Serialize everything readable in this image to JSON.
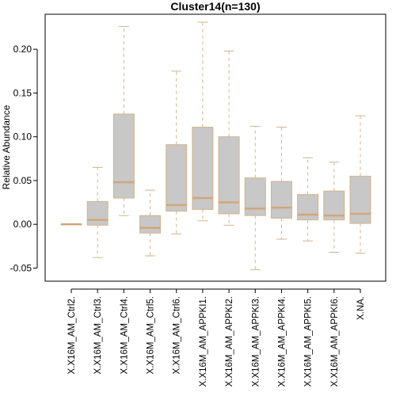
{
  "chart_data": {
    "type": "box",
    "title": "Cluster14(n=130)",
    "xlabel": "",
    "ylabel": "Relative Abundance",
    "ylim": [
      -0.065,
      0.24
    ],
    "yticks": [
      -0.05,
      0.0,
      0.05,
      0.1,
      0.15,
      0.2
    ],
    "ytick_labels": [
      "-0.05",
      "0.00",
      "0.05",
      "0.10",
      "0.15",
      "0.20"
    ],
    "grid": false,
    "box_fill": "#c8c8c8",
    "box_stroke": "#d2b48c",
    "median_color": "#d2a679",
    "categories": [
      "X.X16M_AM_Ctrl2.",
      "X.X16M_AM_Ctrl3.",
      "X.X16M_AM_Ctrl4.",
      "X.X16M_AM_Ctrl5.",
      "X.X16M_AM_Ctrl6.",
      "X.X16M_AM_APPKI1.",
      "X.X16M_AM_APPKI2.",
      "X.X16M_AM_APPKI3.",
      "X.X16M_AM_APPKI4.",
      "X.X16M_AM_APPKI5.",
      "X.X16M_AM_APPKI6.",
      "X.NA."
    ],
    "boxes": [
      {
        "min": 0.0,
        "q1": 0.0,
        "median": 0.0,
        "q3": 0.0,
        "max": 0.0
      },
      {
        "min": -0.038,
        "q1": -0.001,
        "median": 0.005,
        "q3": 0.026,
        "max": 0.065
      },
      {
        "min": 0.01,
        "q1": 0.03,
        "median": 0.048,
        "q3": 0.126,
        "max": 0.226
      },
      {
        "min": -0.036,
        "q1": -0.01,
        "median": -0.004,
        "q3": 0.01,
        "max": 0.039
      },
      {
        "min": -0.011,
        "q1": 0.015,
        "median": 0.022,
        "q3": 0.091,
        "max": 0.175
      },
      {
        "min": 0.004,
        "q1": 0.017,
        "median": 0.03,
        "q3": 0.111,
        "max": 0.231
      },
      {
        "min": -0.001,
        "q1": 0.012,
        "median": 0.025,
        "q3": 0.1,
        "max": 0.198
      },
      {
        "min": -0.052,
        "q1": 0.01,
        "median": 0.018,
        "q3": 0.053,
        "max": 0.112
      },
      {
        "min": -0.017,
        "q1": 0.007,
        "median": 0.019,
        "q3": 0.049,
        "max": 0.111
      },
      {
        "min": -0.019,
        "q1": 0.005,
        "median": 0.011,
        "q3": 0.034,
        "max": 0.076
      },
      {
        "min": -0.032,
        "q1": 0.005,
        "median": 0.01,
        "q3": 0.038,
        "max": 0.071
      },
      {
        "min": -0.033,
        "q1": 0.001,
        "median": 0.012,
        "q3": 0.055,
        "max": 0.124
      }
    ]
  }
}
